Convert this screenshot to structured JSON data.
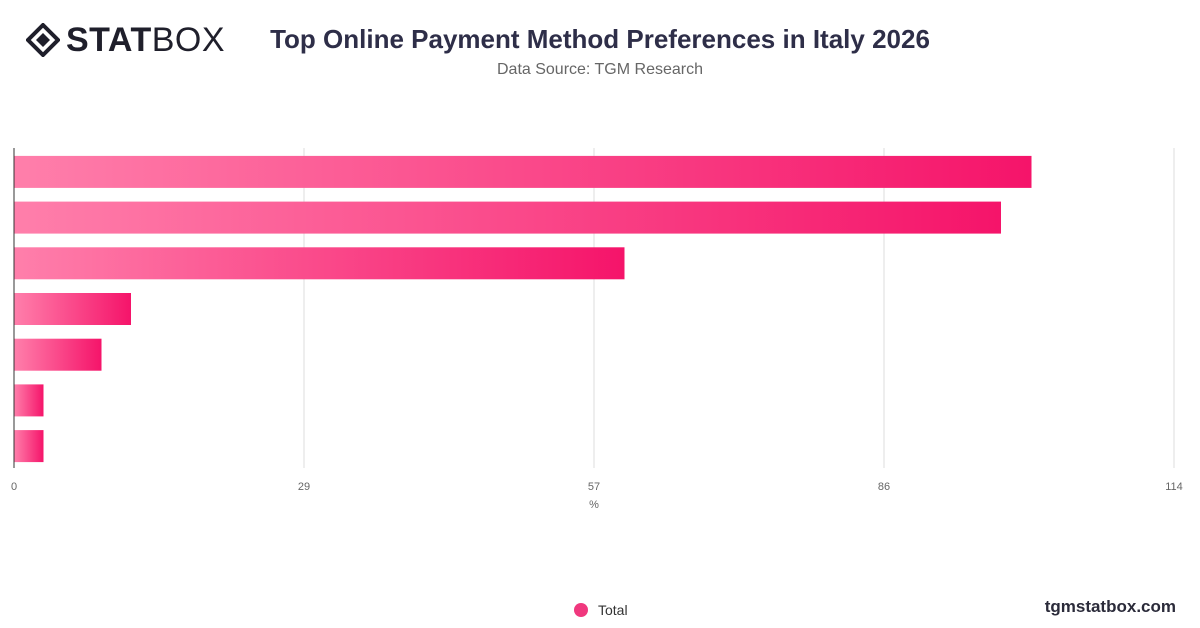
{
  "brand": {
    "logo_bold": "STAT",
    "logo_light": "BOX",
    "site": "tgmstatbox.com"
  },
  "header": {
    "title": "Top Online Payment Method Preferences in Italy 2026",
    "subtitle": "Data Source: TGM Research"
  },
  "legend": {
    "label": "Total",
    "color": "#f0387e"
  },
  "chart_data": {
    "type": "bar",
    "orientation": "horizontal",
    "title": "Top Online Payment Method Preferences in Italy 2026",
    "subtitle": "Data Source: TGM Research",
    "xlabel": "%",
    "ylabel": "",
    "xlim": [
      0,
      114
    ],
    "x_ticks": [
      "0",
      "29",
      "57",
      "86",
      "114"
    ],
    "categories": [
      "",
      "",
      "",
      "",
      "",
      "",
      ""
    ],
    "series": [
      {
        "name": "Total",
        "values": [
          100,
          97,
          60,
          11.5,
          8.6,
          2.9,
          2.9
        ]
      }
    ],
    "grid": true,
    "legend_position": "bottom-center",
    "colors": {
      "bar_start": "#ff7fab",
      "bar_end": "#f5146a",
      "grid": "#dddddd",
      "axis": "#333333"
    }
  }
}
